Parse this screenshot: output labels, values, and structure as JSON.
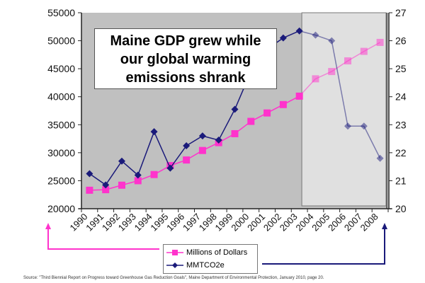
{
  "chart_data": {
    "type": "line",
    "title": "Maine GDP grew while our global warming emissions shrank",
    "x": [
      "1990",
      "1991",
      "1992",
      "1993",
      "1994",
      "1995",
      "1996",
      "1997",
      "1998",
      "1999",
      "2000",
      "2001",
      "2002",
      "2003",
      "2004",
      "2005",
      "2006",
      "2007",
      "2008"
    ],
    "series": [
      {
        "name": "Millions of Dollars",
        "axis": "left",
        "color": "#ff33cc",
        "values": [
          23300,
          23400,
          24200,
          25000,
          26100,
          27700,
          28700,
          30400,
          31800,
          33400,
          35600,
          37100,
          38600,
          40100,
          43200,
          44500,
          46400,
          48100,
          49700
        ]
      },
      {
        "name": "MMTCO2e",
        "axis": "right",
        "color": "#1a1a7a",
        "values": [
          21.25,
          20.85,
          21.7,
          21.2,
          22.75,
          21.45,
          22.25,
          22.6,
          22.45,
          23.55,
          24.9,
          25.7,
          26.1,
          26.35,
          26.2,
          26.0,
          22.95,
          22.95,
          21.8
        ]
      }
    ],
    "y_left": {
      "range": [
        20000,
        55000
      ],
      "ticks": [
        "20000",
        "25000",
        "30000",
        "35000",
        "40000",
        "45000",
        "50000",
        "55000"
      ]
    },
    "y_right": {
      "range": [
        20,
        27
      ],
      "ticks": [
        "20",
        "21",
        "22",
        "23",
        "24",
        "25",
        "26",
        "27"
      ]
    },
    "highlight_from": "2004",
    "legend_placement": "bottom-center",
    "grid": false
  },
  "annotation": "Maine GDP grew while our global warming emissions shrank",
  "annotation_lines": [
    "Maine GDP grew while",
    "our global warming",
    "emissions shrank"
  ],
  "legend": [
    "Millions of Dollars",
    "MMTCO2e"
  ],
  "source": "Source:  \"Third Biennial Report on Progress toward Greenhouse Gas Reduction Goals\", Maine Department of Environmental Protection, January 2010, page 20."
}
